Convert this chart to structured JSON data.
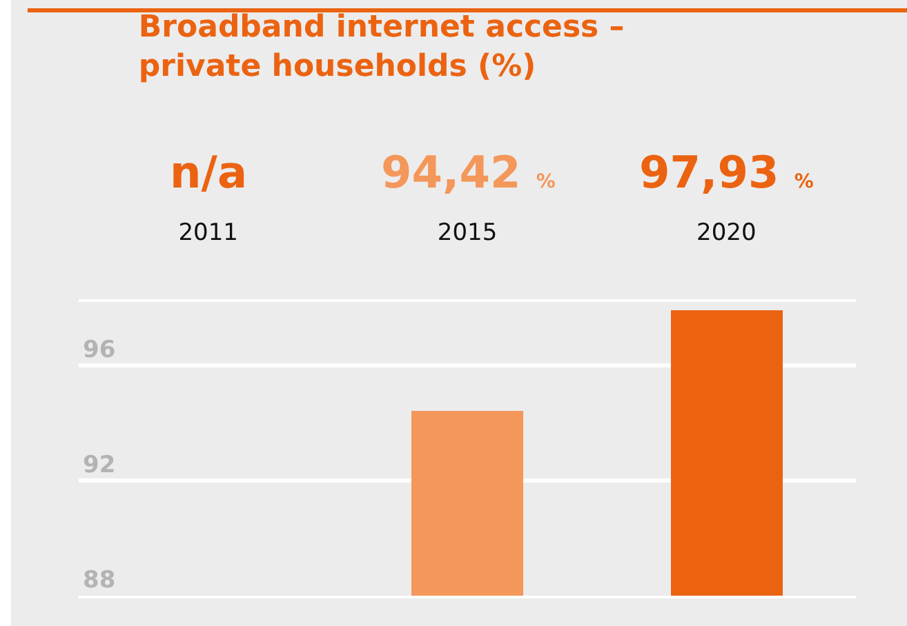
{
  "chart_data": {
    "type": "bar",
    "title": "Broadband internet access –\nprivate households (%)",
    "categories": [
      "2011",
      "2015",
      "2020"
    ],
    "values": [
      null,
      94.42,
      97.93
    ],
    "colors": [
      "#eb6311",
      "#f4975a",
      "#eb6311"
    ],
    "value_labels": [
      "n/a",
      "94,42 %",
      "97,93 %"
    ],
    "ylim": [
      88,
      98.2
    ],
    "yticks": [
      88,
      92,
      96
    ],
    "grid": "y",
    "legend": false
  }
}
